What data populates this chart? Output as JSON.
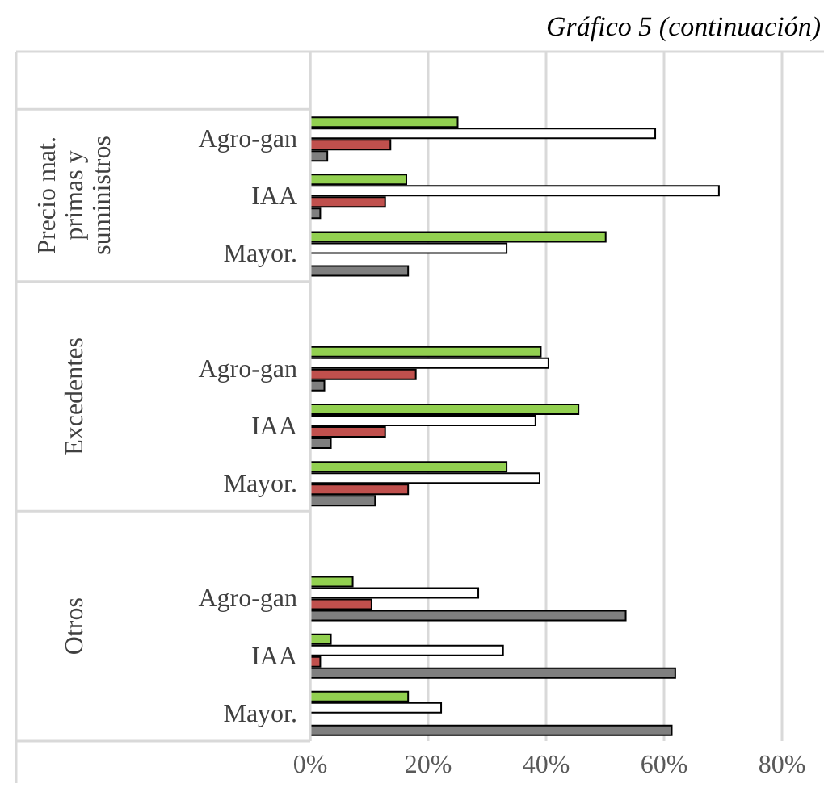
{
  "chart_data": {
    "type": "bar",
    "orientation": "horizontal",
    "title": "Gráfico 5 (continuación)",
    "categories": [
      null,
      "Agro-gan",
      "IAA",
      "Mayor.",
      null,
      "Agro-gan",
      "IAA",
      "Mayor.",
      null,
      "Agro-gan",
      "IAA",
      "Mayor."
    ],
    "annotations": [
      "Precio mat. primas y suministros",
      "Excedentes",
      "Otros"
    ],
    "series": [
      {
        "color": "#92d050",
        "values": [
          null,
          25,
          16.3,
          50.1,
          null,
          39.1,
          45.5,
          33.3,
          null,
          7.2,
          3.5,
          16.6
        ]
      },
      {
        "color": "#ffffff",
        "values": [
          null,
          58.5,
          69.3,
          33.3,
          null,
          40.4,
          38.2,
          38.9,
          null,
          28.5,
          32.7,
          22.2
        ]
      },
      {
        "color": "#c0504d",
        "values": [
          null,
          13.6,
          12.7,
          0,
          null,
          17.9,
          12.7,
          16.6,
          null,
          10.4,
          1.7,
          0
        ]
      },
      {
        "color": "#7f7f7f",
        "values": [
          null,
          2.9,
          1.7,
          16.6,
          null,
          2.4,
          3.5,
          11.0,
          null,
          53.5,
          61.9,
          61.3
        ]
      }
    ],
    "xlim": [
      0,
      80
    ],
    "xticks": [
      {
        "value": 0,
        "label": "0%"
      },
      {
        "value": 20,
        "label": "20%"
      },
      {
        "value": 40,
        "label": "40%"
      },
      {
        "value": 60,
        "label": "60%"
      },
      {
        "value": 80,
        "label": "80%"
      }
    ],
    "grid": "x",
    "legend": false
  }
}
